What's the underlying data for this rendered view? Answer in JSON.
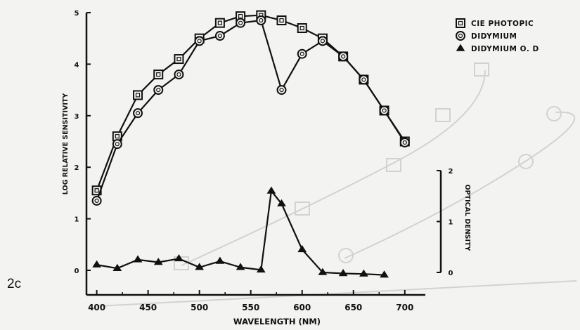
{
  "figure_label": "2c",
  "colors": {
    "ink": "#111111",
    "background": "#f3f3f1",
    "ghost": "#cfcfcc"
  },
  "chart_data": {
    "type": "line",
    "xlabel": "WAVELENGTH (NM)",
    "ylabel": "LOG RELATIVE SENSITIVITY",
    "y2label": "OPTICAL DENSITY",
    "xlim": [
      390,
      720
    ],
    "ylim": [
      0,
      5
    ],
    "y2lim": [
      0,
      2
    ],
    "xticks": [
      400,
      450,
      500,
      550,
      600,
      650,
      700
    ],
    "yticks": [
      0,
      1,
      2,
      3,
      4,
      5
    ],
    "y2ticks": [
      0,
      1,
      2
    ],
    "legend_position": "top-right",
    "series": [
      {
        "name": "CIE PHOTOPIC",
        "marker": "square",
        "axis": "left",
        "x": [
          400,
          420,
          440,
          460,
          480,
          500,
          520,
          540,
          560,
          580,
          600,
          620,
          640,
          660,
          680,
          700
        ],
        "y": [
          1.55,
          2.6,
          3.4,
          3.8,
          4.1,
          4.5,
          4.8,
          4.93,
          4.95,
          4.85,
          4.7,
          4.5,
          4.15,
          3.7,
          3.1,
          2.5
        ]
      },
      {
        "name": "DIDYMIUM",
        "marker": "circle",
        "axis": "left",
        "x": [
          400,
          420,
          440,
          460,
          480,
          500,
          520,
          540,
          560,
          580,
          600,
          620,
          640,
          660,
          680,
          700
        ],
        "y": [
          1.35,
          2.45,
          3.05,
          3.5,
          3.8,
          4.45,
          4.55,
          4.8,
          4.85,
          3.5,
          4.2,
          4.45,
          4.15,
          3.7,
          3.1,
          2.48
        ]
      },
      {
        "name": "DIDYMIUM O. D",
        "marker": "triangle",
        "axis": "right",
        "x": [
          400,
          420,
          440,
          460,
          480,
          500,
          520,
          540,
          560,
          570,
          580,
          600,
          620,
          640,
          660,
          680
        ],
        "y": [
          0.15,
          0.08,
          0.25,
          0.2,
          0.27,
          0.1,
          0.22,
          0.1,
          0.05,
          1.6,
          1.35,
          0.45,
          0.0,
          -0.02,
          -0.03,
          -0.05
        ]
      }
    ]
  }
}
